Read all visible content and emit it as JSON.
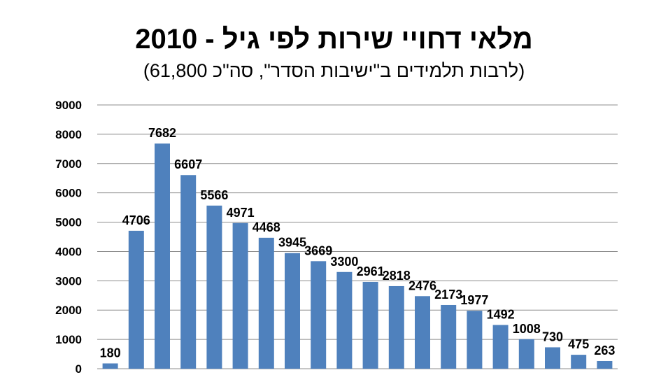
{
  "chart_data": {
    "type": "bar",
    "title": "מלאי דחויי שירות לפי גיל - 2010",
    "subtitle": "(לרבות תלמידים ב\"ישיבות הסדר\", סה\"כ 61,800)",
    "values": [
      180,
      4706,
      7682,
      6607,
      5566,
      4971,
      4468,
      3945,
      3669,
      3300,
      2961,
      2818,
      2476,
      2173,
      1977,
      1492,
      1008,
      730,
      475,
      263
    ],
    "ylim": [
      0,
      9000
    ],
    "yticks": [
      0,
      1000,
      2000,
      3000,
      4000,
      5000,
      6000,
      7000,
      8000,
      9000
    ],
    "grid": true,
    "bar_color": "#4f81bd",
    "gridline_color": "#8c8c8c"
  }
}
